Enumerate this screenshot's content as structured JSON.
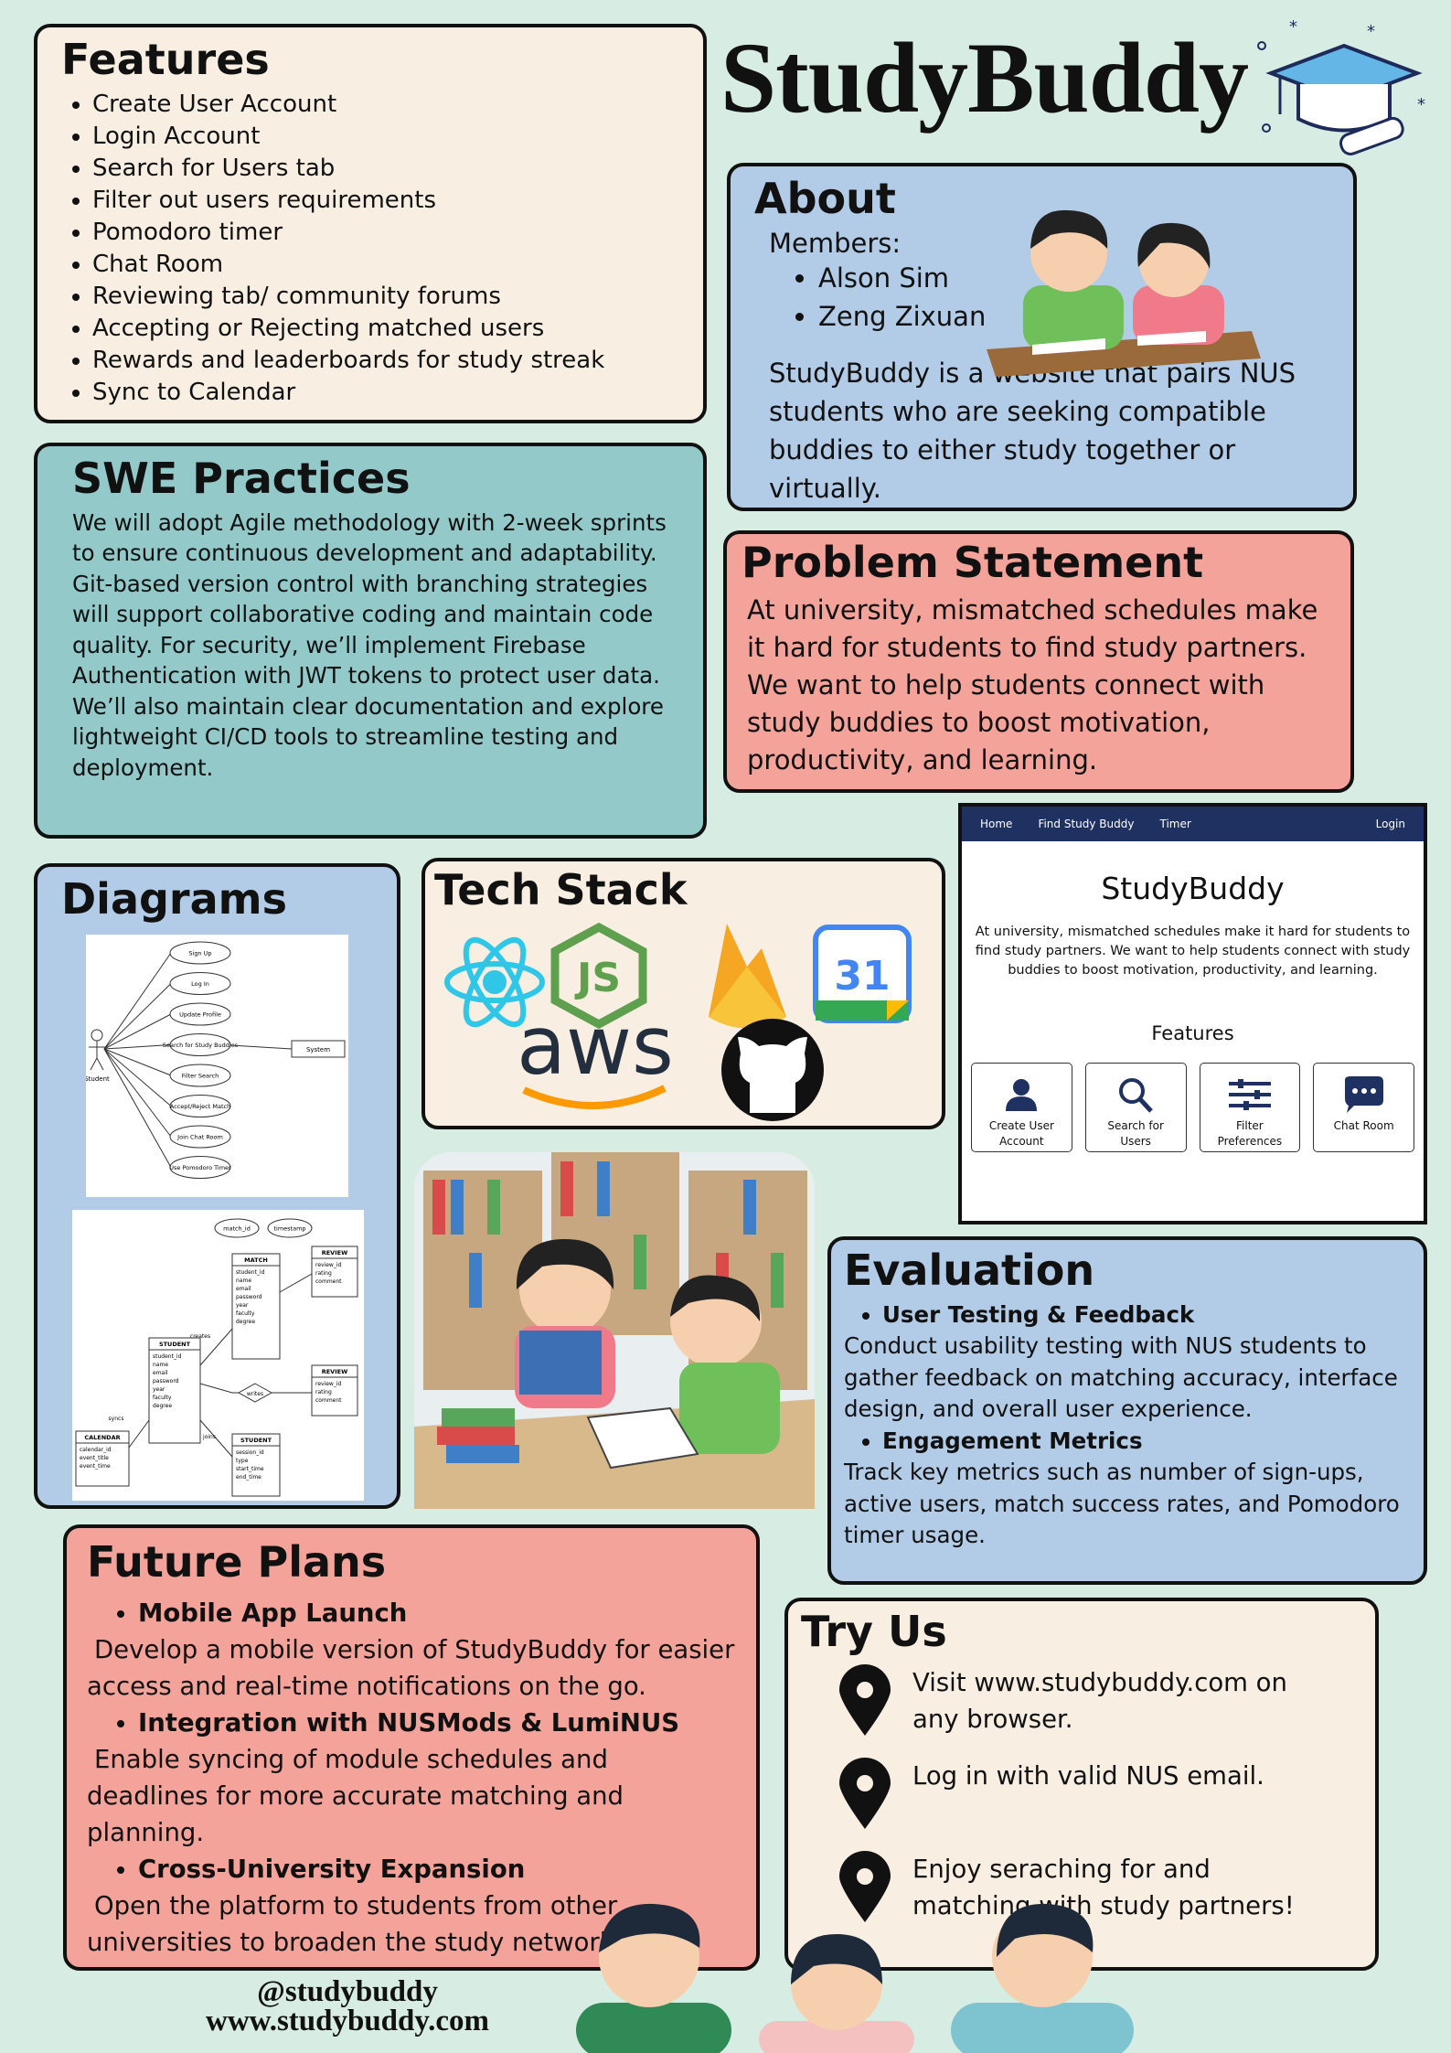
{
  "title": "StudyBuddy",
  "features": {
    "heading": "Features",
    "items": [
      "Create User Account",
      "Login Account",
      "Search for Users tab",
      "Filter out users requirements",
      "Pomodoro timer",
      "Chat Room",
      "Reviewing tab/ community forums",
      "Accepting or Rejecting matched users",
      "Rewards and leaderboards for study streak",
      "Sync to Calendar"
    ]
  },
  "about": {
    "heading": "About",
    "members_label": "Members:",
    "members": [
      "Alson Sim",
      "Zeng Zixuan"
    ],
    "description": "StudyBuddy is a website that pairs NUS students who are seeking compatible buddies to either study together or virtually."
  },
  "swe": {
    "heading": "SWE Practices",
    "body": "We will adopt Agile methodology with 2-week sprints to ensure continuous development and adaptability. Git-based version control with branching strategies will support collaborative coding and maintain code quality. For security, we’ll implement Firebase Authentication with JWT tokens to protect user data. We’ll also maintain clear documentation and explore lightweight CI/CD tools to streamline testing and deployment."
  },
  "problem": {
    "heading": "Problem Statement",
    "body": "At university, mismatched schedules make it hard for students to find study partners. We want to help students connect with study buddies to boost motivation, productivity, and learning."
  },
  "webapp": {
    "nav": [
      "Home",
      "Find Study Buddy",
      "Timer"
    ],
    "login": "Login",
    "title": "StudyBuddy",
    "tagline": "At university, mismatched schedules make it hard for  students to find study partners. We want to help students connect with study buddies to boost motivation, productivity, and learning.",
    "features_heading": "Features",
    "cards": [
      "Create User Account",
      "Search for Users",
      "Filter Preferences",
      "Chat Room"
    ]
  },
  "diagrams": {
    "heading": "Diagrams",
    "use_case": {
      "actor": "Student",
      "system": "System",
      "cases": [
        "Sign Up",
        "Log In",
        "Update Profile",
        "Search for Study Buddies",
        "Filter Search",
        "Accept/Reject Match",
        "Join Chat Room",
        "Use Pomodoro Timer"
      ]
    },
    "er": {
      "attributes": [
        "match_id",
        "timestamp"
      ],
      "relations": [
        "creates",
        "writes",
        "syncs",
        "joins"
      ],
      "entities": [
        {
          "name": "MATCH",
          "fields": [
            "student_id",
            "name",
            "email",
            "password",
            "year",
            "faculty",
            "degree"
          ]
        },
        {
          "name": "REVIEW",
          "fields": [
            "review_id",
            "rating",
            "comment"
          ]
        },
        {
          "name": "STUDENT",
          "fields": [
            "student_id",
            "name",
            "email",
            "password",
            "year",
            "faculty",
            "degree"
          ]
        },
        {
          "name": "REVIEW",
          "fields": [
            "review_id",
            "rating",
            "comment"
          ]
        },
        {
          "name": "CALENDAR",
          "fields": [
            "calendar_id",
            "event_title",
            "event_time"
          ]
        },
        {
          "name": "STUDENT",
          "fields": [
            "session_id",
            "type",
            "start_time",
            "end_time"
          ]
        }
      ]
    }
  },
  "tech": {
    "heading": "Tech Stack",
    "js": "JS",
    "calendar": "31",
    "aws": "aws"
  },
  "evaluation": {
    "heading": "Evaluation",
    "items": [
      {
        "title": "User Testing & Feedback",
        "body": "Conduct usability testing with NUS students to gather feedback on matching accuracy, interface design, and overall user experience."
      },
      {
        "title": "Engagement Metrics",
        "body": "Track key metrics such as number of sign-ups, active users, match success rates, and Pomodoro timer usage."
      }
    ]
  },
  "future": {
    "heading": "Future Plans",
    "items": [
      {
        "title": "Mobile App Launch",
        "body": "Develop a mobile version of StudyBuddy for easier access and real-time notifications on the go."
      },
      {
        "title": "Integration with NUSMods & LumiNUS",
        "body": "Enable syncing of module schedules and deadlines for more accurate matching and planning."
      },
      {
        "title": "Cross-University Expansion",
        "body": "Open the platform to students from other universities to broaden the study network."
      }
    ]
  },
  "try_us": {
    "heading": "Try Us",
    "steps": [
      "Visit www.studybuddy.com on any browser.",
      "Log in with valid NUS email.",
      "Enjoy seraching for and matching with study partners!"
    ]
  },
  "footer": {
    "handle": "@studybuddy",
    "url": "www.studybuddy.com"
  }
}
